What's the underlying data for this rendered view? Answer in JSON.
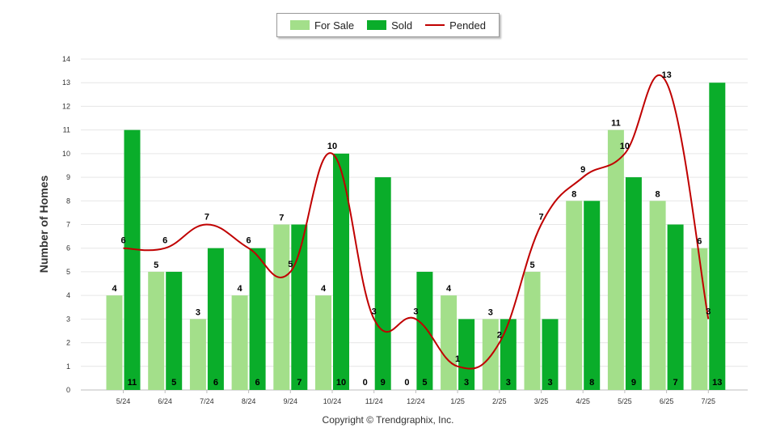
{
  "chart_data": {
    "type": "bar",
    "ylabel": "Number of Homes",
    "xlabel": "",
    "ylim": [
      0,
      14
    ],
    "yticks": [
      0,
      1,
      2,
      3,
      4,
      5,
      6,
      7,
      8,
      9,
      10,
      11,
      12,
      13,
      14
    ],
    "grid": true,
    "legend_position": "top-center",
    "categories": [
      "5/24",
      "6/24",
      "7/24",
      "8/24",
      "9/24",
      "10/24",
      "11/24",
      "12/24",
      "1/25",
      "2/25",
      "3/25",
      "4/25",
      "5/25",
      "6/25",
      "7/25"
    ],
    "series": [
      {
        "name": "For Sale",
        "type": "bar",
        "color": "#a3df8a",
        "values": [
          4,
          5,
          3,
          4,
          7,
          4,
          0,
          0,
          4,
          3,
          5,
          8,
          11,
          8,
          6
        ]
      },
      {
        "name": "Sold",
        "type": "bar",
        "color": "#0aad2a",
        "values": [
          11,
          5,
          6,
          6,
          7,
          10,
          9,
          5,
          3,
          3,
          3,
          8,
          9,
          7,
          13
        ]
      },
      {
        "name": "Pended",
        "type": "line",
        "color": "#c00000",
        "values": [
          6,
          6,
          7,
          6,
          5,
          10,
          3,
          3,
          1,
          2,
          7,
          9,
          10,
          13,
          3
        ]
      }
    ]
  },
  "legend": {
    "for_sale": "For Sale",
    "sold": "Sold",
    "pended": "Pended"
  },
  "footer": {
    "copyright": "Copyright © Trendgraphix, Inc."
  }
}
